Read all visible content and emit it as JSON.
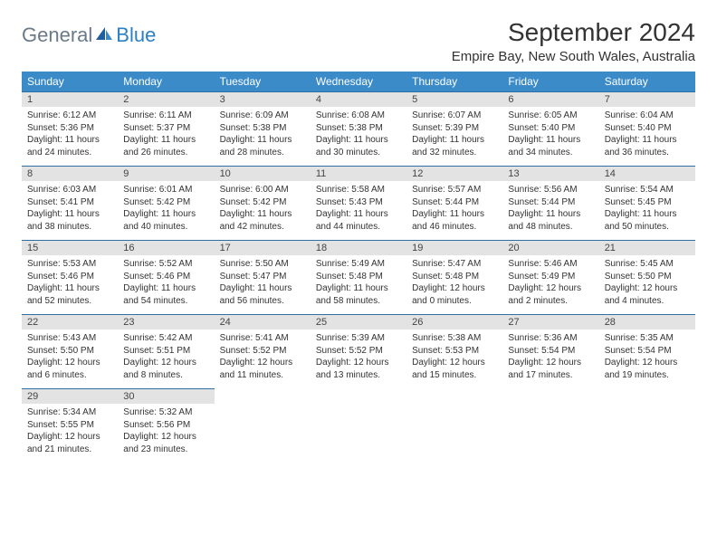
{
  "brand": {
    "part1": "General",
    "part2": "Blue"
  },
  "header": {
    "title": "September 2024",
    "location": "Empire Bay, New South Wales, Australia"
  },
  "colors": {
    "header_bg": "#3b8bc9",
    "header_text": "#ffffff",
    "daynum_bg": "#e3e3e3",
    "row_divider": "#2f6fa3",
    "body_text": "#333333",
    "brand_gray": "#6b7a8a",
    "brand_blue": "#2b7fc3",
    "page_bg": "#ffffff"
  },
  "weekdays": [
    "Sunday",
    "Monday",
    "Tuesday",
    "Wednesday",
    "Thursday",
    "Friday",
    "Saturday"
  ],
  "grid": {
    "rows": 5,
    "cols": 7
  },
  "days": [
    {
      "n": "1",
      "sr": "6:12 AM",
      "ss": "5:36 PM",
      "dl": "11 hours and 24 minutes."
    },
    {
      "n": "2",
      "sr": "6:11 AM",
      "ss": "5:37 PM",
      "dl": "11 hours and 26 minutes."
    },
    {
      "n": "3",
      "sr": "6:09 AM",
      "ss": "5:38 PM",
      "dl": "11 hours and 28 minutes."
    },
    {
      "n": "4",
      "sr": "6:08 AM",
      "ss": "5:38 PM",
      "dl": "11 hours and 30 minutes."
    },
    {
      "n": "5",
      "sr": "6:07 AM",
      "ss": "5:39 PM",
      "dl": "11 hours and 32 minutes."
    },
    {
      "n": "6",
      "sr": "6:05 AM",
      "ss": "5:40 PM",
      "dl": "11 hours and 34 minutes."
    },
    {
      "n": "7",
      "sr": "6:04 AM",
      "ss": "5:40 PM",
      "dl": "11 hours and 36 minutes."
    },
    {
      "n": "8",
      "sr": "6:03 AM",
      "ss": "5:41 PM",
      "dl": "11 hours and 38 minutes."
    },
    {
      "n": "9",
      "sr": "6:01 AM",
      "ss": "5:42 PM",
      "dl": "11 hours and 40 minutes."
    },
    {
      "n": "10",
      "sr": "6:00 AM",
      "ss": "5:42 PM",
      "dl": "11 hours and 42 minutes."
    },
    {
      "n": "11",
      "sr": "5:58 AM",
      "ss": "5:43 PM",
      "dl": "11 hours and 44 minutes."
    },
    {
      "n": "12",
      "sr": "5:57 AM",
      "ss": "5:44 PM",
      "dl": "11 hours and 46 minutes."
    },
    {
      "n": "13",
      "sr": "5:56 AM",
      "ss": "5:44 PM",
      "dl": "11 hours and 48 minutes."
    },
    {
      "n": "14",
      "sr": "5:54 AM",
      "ss": "5:45 PM",
      "dl": "11 hours and 50 minutes."
    },
    {
      "n": "15",
      "sr": "5:53 AM",
      "ss": "5:46 PM",
      "dl": "11 hours and 52 minutes."
    },
    {
      "n": "16",
      "sr": "5:52 AM",
      "ss": "5:46 PM",
      "dl": "11 hours and 54 minutes."
    },
    {
      "n": "17",
      "sr": "5:50 AM",
      "ss": "5:47 PM",
      "dl": "11 hours and 56 minutes."
    },
    {
      "n": "18",
      "sr": "5:49 AM",
      "ss": "5:48 PM",
      "dl": "11 hours and 58 minutes."
    },
    {
      "n": "19",
      "sr": "5:47 AM",
      "ss": "5:48 PM",
      "dl": "12 hours and 0 minutes."
    },
    {
      "n": "20",
      "sr": "5:46 AM",
      "ss": "5:49 PM",
      "dl": "12 hours and 2 minutes."
    },
    {
      "n": "21",
      "sr": "5:45 AM",
      "ss": "5:50 PM",
      "dl": "12 hours and 4 minutes."
    },
    {
      "n": "22",
      "sr": "5:43 AM",
      "ss": "5:50 PM",
      "dl": "12 hours and 6 minutes."
    },
    {
      "n": "23",
      "sr": "5:42 AM",
      "ss": "5:51 PM",
      "dl": "12 hours and 8 minutes."
    },
    {
      "n": "24",
      "sr": "5:41 AM",
      "ss": "5:52 PM",
      "dl": "12 hours and 11 minutes."
    },
    {
      "n": "25",
      "sr": "5:39 AM",
      "ss": "5:52 PM",
      "dl": "12 hours and 13 minutes."
    },
    {
      "n": "26",
      "sr": "5:38 AM",
      "ss": "5:53 PM",
      "dl": "12 hours and 15 minutes."
    },
    {
      "n": "27",
      "sr": "5:36 AM",
      "ss": "5:54 PM",
      "dl": "12 hours and 17 minutes."
    },
    {
      "n": "28",
      "sr": "5:35 AM",
      "ss": "5:54 PM",
      "dl": "12 hours and 19 minutes."
    },
    {
      "n": "29",
      "sr": "5:34 AM",
      "ss": "5:55 PM",
      "dl": "12 hours and 21 minutes."
    },
    {
      "n": "30",
      "sr": "5:32 AM",
      "ss": "5:56 PM",
      "dl": "12 hours and 23 minutes."
    }
  ],
  "labels": {
    "sunrise": "Sunrise:",
    "sunset": "Sunset:",
    "daylight": "Daylight:"
  },
  "typography": {
    "title_fontsize": 28,
    "subtitle_fontsize": 15,
    "weekday_fontsize": 12,
    "daynum_fontsize": 11,
    "body_fontsize": 10
  }
}
